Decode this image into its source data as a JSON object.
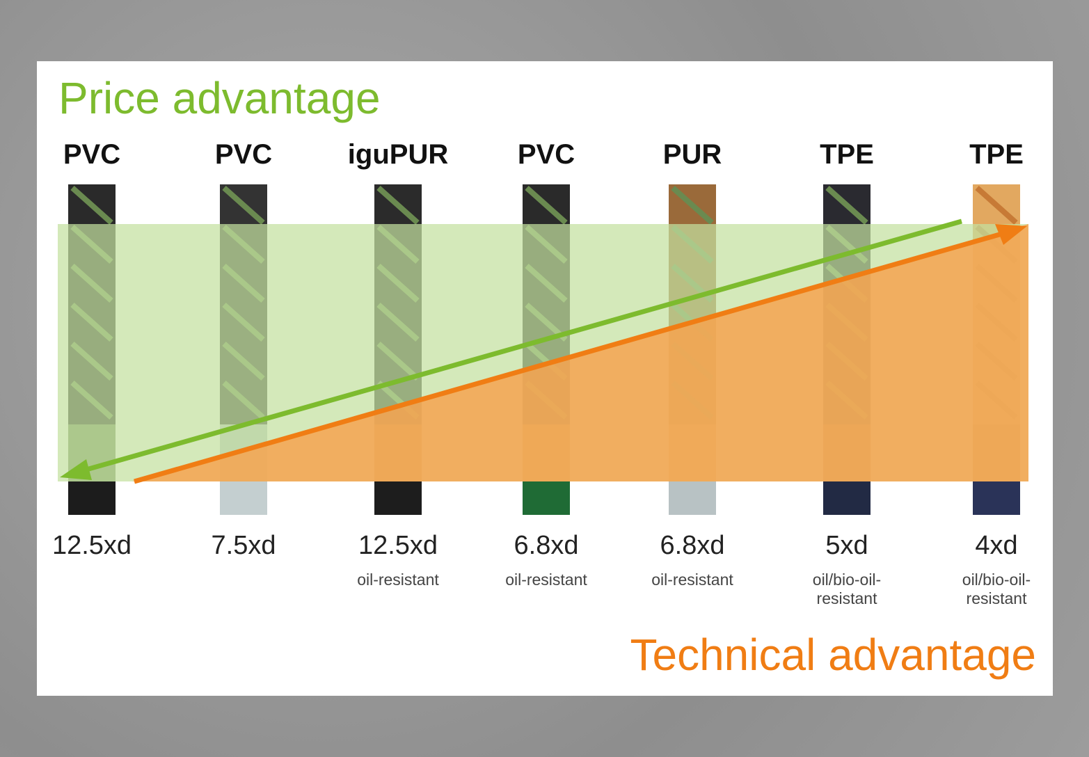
{
  "titles": {
    "price": "Price advantage",
    "technical": "Technical advantage"
  },
  "colors": {
    "price": "#7dbb2e",
    "technical": "#f07d14",
    "price_band": "#c3e0a0",
    "technical_band": "#f6a350"
  },
  "cables": [
    {
      "material": "PVC",
      "rating": "12.5xd",
      "note": "",
      "strand": "#2a2a2a",
      "jacket": "#6f8a5a",
      "end": "#1c1c1c"
    },
    {
      "material": "PVC",
      "rating": "7.5xd",
      "note": "",
      "strand": "#333",
      "jacket": "#b9c6c8",
      "end": "#c4cfd0"
    },
    {
      "material": "iguPUR",
      "rating": "12.5xd",
      "note": "oil-resistant",
      "strand": "#2b2b2b",
      "jacket": "#b86a38",
      "end": "#1d1d1d"
    },
    {
      "material": "PVC",
      "rating": "6.8xd",
      "note": "oil-resistant",
      "strand": "#2a2a2a",
      "jacket": "#d98a3a",
      "end": "#1f6b35"
    },
    {
      "material": "PUR",
      "rating": "6.8xd",
      "note": "oil-resistant",
      "strand": "#9a6a3a",
      "jacket": "#e9a766",
      "end": "#b8c2c4"
    },
    {
      "material": "TPE",
      "rating": "5xd",
      "note": "oil/bio-oil-resistant",
      "strand": "#2a2a30",
      "jacket": "#a65a2c",
      "end": "#222a44"
    },
    {
      "material": "TPE",
      "rating": "4xd",
      "note": "oil/bio-oil-resistant",
      "strand": "#e2a860",
      "jacket": "#b8683a",
      "end": "#2a3358"
    }
  ]
}
